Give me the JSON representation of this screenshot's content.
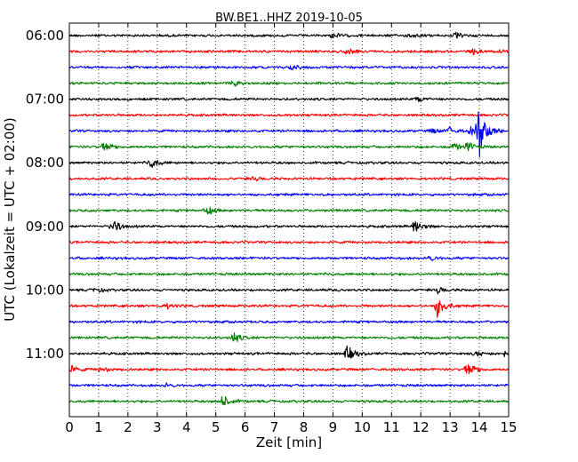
{
  "chart_data": {
    "type": "line",
    "title": "BW.BE1..HHZ 2019-10-05",
    "xlabel": "Zeit  [min]",
    "ylabel": "UTC (Lokalzeit = UTC + 02:00)",
    "xlim": [
      0,
      15
    ],
    "x_ticks": [
      "0",
      "1",
      "2",
      "3",
      "4",
      "5",
      "6",
      "7",
      "8",
      "9",
      "10",
      "11",
      "12",
      "13",
      "14",
      "15"
    ],
    "y_tick_labels": [
      "06:00",
      "07:00",
      "08:00",
      "09:00",
      "10:00",
      "11:00"
    ],
    "grid": "vertical dotted",
    "trace_interval_minutes": 15,
    "start_time": "06:00",
    "color_cycle": [
      "#000000",
      "#ff0000",
      "#0000ff",
      "#008000"
    ],
    "series": [
      {
        "start": "06:00",
        "events": [
          {
            "x": 9.0,
            "amp": 0.35
          },
          {
            "x": 11.6,
            "amp": 0.25
          },
          {
            "x": 13.2,
            "amp": 0.3
          }
        ]
      },
      {
        "start": "06:15",
        "events": [
          {
            "x": 9.5,
            "amp": 0.35
          },
          {
            "x": 13.8,
            "amp": 0.3
          },
          {
            "x": 14.7,
            "amp": 0.3
          }
        ]
      },
      {
        "start": "06:30",
        "events": [
          {
            "x": 7.6,
            "amp": 0.35
          }
        ]
      },
      {
        "start": "06:45",
        "events": [
          {
            "x": 5.6,
            "amp": 0.3
          }
        ]
      },
      {
        "start": "07:00",
        "events": [
          {
            "x": 11.9,
            "amp": 0.35
          }
        ]
      },
      {
        "start": "07:15",
        "events": []
      },
      {
        "start": "07:30",
        "events": [
          {
            "x": 12.4,
            "amp": 0.3
          },
          {
            "x": 13.0,
            "amp": 0.45
          },
          {
            "x": 13.7,
            "amp": 0.45
          },
          {
            "x": 14.0,
            "amp": 3.5
          }
        ]
      },
      {
        "start": "07:45",
        "events": [
          {
            "x": 1.2,
            "amp": 0.8
          },
          {
            "x": 13.1,
            "amp": 0.5
          },
          {
            "x": 13.6,
            "amp": 0.6
          }
        ]
      },
      {
        "start": "08:00",
        "events": [
          {
            "x": 2.8,
            "amp": 0.7
          }
        ]
      },
      {
        "start": "08:15",
        "events": [
          {
            "x": 6.3,
            "amp": 0.25
          }
        ]
      },
      {
        "start": "08:30",
        "events": []
      },
      {
        "start": "08:45",
        "events": [
          {
            "x": 4.7,
            "amp": 0.6
          }
        ]
      },
      {
        "start": "09:00",
        "events": [
          {
            "x": 1.5,
            "amp": 0.9
          },
          {
            "x": 11.8,
            "amp": 0.9
          }
        ]
      },
      {
        "start": "09:15",
        "events": []
      },
      {
        "start": "09:30",
        "events": [
          {
            "x": 12.3,
            "amp": 0.35
          }
        ]
      },
      {
        "start": "09:45",
        "events": []
      },
      {
        "start": "10:00",
        "events": [
          {
            "x": 0.9,
            "amp": 0.3
          },
          {
            "x": 12.6,
            "amp": 0.4
          }
        ]
      },
      {
        "start": "10:15",
        "events": [
          {
            "x": 3.3,
            "amp": 0.3
          },
          {
            "x": 12.6,
            "amp": 1.6
          }
        ]
      },
      {
        "start": "10:30",
        "events": []
      },
      {
        "start": "10:45",
        "events": [
          {
            "x": 5.6,
            "amp": 0.7
          }
        ]
      },
      {
        "start": "11:00",
        "events": [
          {
            "x": 9.5,
            "amp": 1.0
          },
          {
            "x": 13.9,
            "amp": 0.4
          },
          {
            "x": 14.9,
            "amp": 0.5
          }
        ]
      },
      {
        "start": "11:15",
        "events": [
          {
            "x": 0.1,
            "amp": 0.4
          },
          {
            "x": 1.1,
            "amp": 0.4
          },
          {
            "x": 13.6,
            "amp": 1.2
          }
        ]
      },
      {
        "start": "11:30",
        "events": [
          {
            "x": 3.3,
            "amp": 0.2
          }
        ]
      },
      {
        "start": "11:45",
        "events": [
          {
            "x": 5.2,
            "amp": 1.0
          }
        ]
      }
    ]
  }
}
